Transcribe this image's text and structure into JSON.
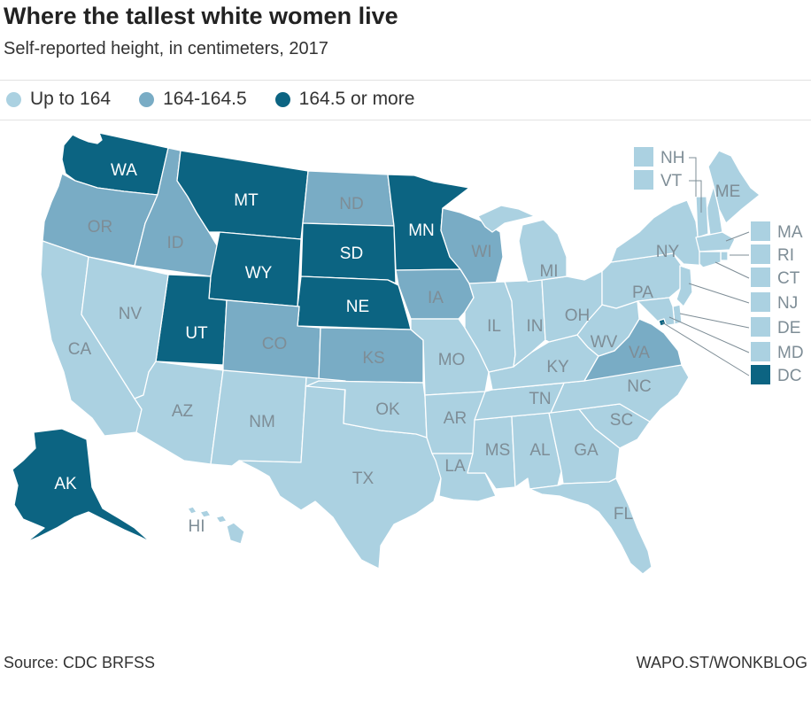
{
  "title": "Where the tallest white women live",
  "subtitle": "Self-reported height, in centimeters, 2017",
  "legend": [
    {
      "key": "low",
      "label": "Up to 164",
      "color": "#abd1e1"
    },
    {
      "key": "mid",
      "label": "164-164.5",
      "color": "#79acc5"
    },
    {
      "key": "high",
      "label": "164.5 or more",
      "color": "#0c6482"
    }
  ],
  "colors": {
    "low": "#abd1e1",
    "mid": "#79acc5",
    "high": "#0c6482",
    "label_dark_bg": "#ffffff",
    "label_light_bg": "#7e8d96",
    "border": "#ffffff"
  },
  "states": [
    {
      "code": "WA",
      "category": "high"
    },
    {
      "code": "OR",
      "category": "mid"
    },
    {
      "code": "ID",
      "category": "mid"
    },
    {
      "code": "MT",
      "category": "high"
    },
    {
      "code": "WY",
      "category": "high"
    },
    {
      "code": "ND",
      "category": "mid"
    },
    {
      "code": "SD",
      "category": "high"
    },
    {
      "code": "NE",
      "category": "high"
    },
    {
      "code": "MN",
      "category": "high"
    },
    {
      "code": "UT",
      "category": "high"
    },
    {
      "code": "CO",
      "category": "mid"
    },
    {
      "code": "KS",
      "category": "mid"
    },
    {
      "code": "IA",
      "category": "mid"
    },
    {
      "code": "WI",
      "category": "mid"
    },
    {
      "code": "VA",
      "category": "mid"
    },
    {
      "code": "AK",
      "category": "high"
    },
    {
      "code": "CA",
      "category": "low"
    },
    {
      "code": "NV",
      "category": "low"
    },
    {
      "code": "AZ",
      "category": "low"
    },
    {
      "code": "NM",
      "category": "low"
    },
    {
      "code": "TX",
      "category": "low"
    },
    {
      "code": "OK",
      "category": "low"
    },
    {
      "code": "MO",
      "category": "low"
    },
    {
      "code": "AR",
      "category": "low"
    },
    {
      "code": "LA",
      "category": "low"
    },
    {
      "code": "MS",
      "category": "low"
    },
    {
      "code": "AL",
      "category": "low"
    },
    {
      "code": "GA",
      "category": "low"
    },
    {
      "code": "FL",
      "category": "low"
    },
    {
      "code": "SC",
      "category": "low"
    },
    {
      "code": "NC",
      "category": "low"
    },
    {
      "code": "TN",
      "category": "low"
    },
    {
      "code": "KY",
      "category": "low"
    },
    {
      "code": "WV",
      "category": "low"
    },
    {
      "code": "IL",
      "category": "low"
    },
    {
      "code": "IN",
      "category": "low"
    },
    {
      "code": "OH",
      "category": "low"
    },
    {
      "code": "MI",
      "category": "low"
    },
    {
      "code": "PA",
      "category": "low"
    },
    {
      "code": "NY",
      "category": "low"
    },
    {
      "code": "ME",
      "category": "low"
    },
    {
      "code": "HI",
      "category": "low"
    }
  ],
  "small_states": [
    {
      "code": "NH",
      "category": "low"
    },
    {
      "code": "VT",
      "category": "low"
    },
    {
      "code": "MA",
      "category": "low"
    },
    {
      "code": "RI",
      "category": "low"
    },
    {
      "code": "CT",
      "category": "low"
    },
    {
      "code": "NJ",
      "category": "low"
    },
    {
      "code": "DE",
      "category": "low"
    },
    {
      "code": "MD",
      "category": "low"
    },
    {
      "code": "DC",
      "category": "high"
    }
  ],
  "source": "Source: CDC BRFSS",
  "credit": "WAPO.ST/WONKBLOG"
}
